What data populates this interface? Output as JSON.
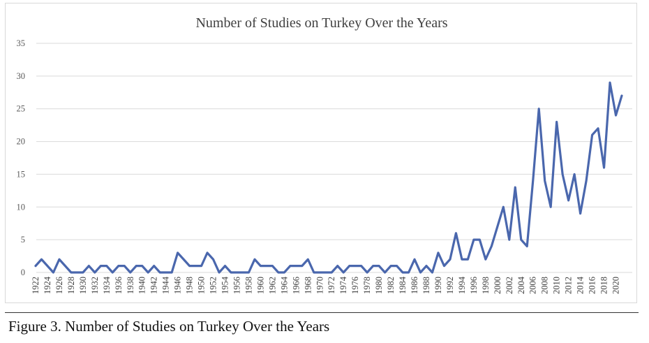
{
  "chart_data": {
    "type": "line",
    "title": "Number of Studies on Turkey Over the Years",
    "xlabel": "",
    "ylabel": "",
    "ylim": [
      0,
      35
    ],
    "yticks": [
      "0",
      "5",
      "10",
      "15",
      "20",
      "25",
      "30",
      "35"
    ],
    "grid": true,
    "legend": "none",
    "x": [
      1922,
      1923,
      1924,
      1925,
      1926,
      1927,
      1928,
      1929,
      1930,
      1931,
      1932,
      1933,
      1934,
      1935,
      1936,
      1937,
      1938,
      1939,
      1940,
      1941,
      1942,
      1943,
      1944,
      1945,
      1946,
      1947,
      1948,
      1949,
      1950,
      1951,
      1952,
      1953,
      1954,
      1955,
      1956,
      1957,
      1958,
      1959,
      1960,
      1961,
      1962,
      1963,
      1964,
      1965,
      1966,
      1967,
      1968,
      1969,
      1970,
      1971,
      1972,
      1973,
      1974,
      1975,
      1976,
      1977,
      1978,
      1979,
      1980,
      1981,
      1982,
      1983,
      1984,
      1985,
      1986,
      1987,
      1988,
      1989,
      1990,
      1991,
      1992,
      1993,
      1994,
      1995,
      1996,
      1997,
      1998,
      1999,
      2000,
      2001,
      2002,
      2003,
      2004,
      2005,
      2006,
      2007,
      2008,
      2009,
      2010,
      2011,
      2012,
      2013,
      2014,
      2015,
      2016,
      2017,
      2018,
      2019,
      2020,
      2021
    ],
    "xticks": [
      "1922",
      "1924",
      "1926",
      "1928",
      "1930",
      "1932",
      "1934",
      "1936",
      "1938",
      "1940",
      "1942",
      "1944",
      "1946",
      "1948",
      "1950",
      "1952",
      "1954",
      "1956",
      "1958",
      "1960",
      "1962",
      "1964",
      "1966",
      "1968",
      "1970",
      "1972",
      "1974",
      "1976",
      "1978",
      "1980",
      "1982",
      "1984",
      "1986",
      "1988",
      "1990",
      "1992",
      "1994",
      "1996",
      "1998",
      "2000",
      "2002",
      "2004",
      "2006",
      "2008",
      "2010",
      "2012",
      "2014",
      "2016",
      "2018",
      "2020"
    ],
    "series": [
      {
        "values": [
          1,
          2,
          1,
          0,
          2,
          1,
          0,
          0,
          0,
          1,
          0,
          1,
          1,
          0,
          1,
          1,
          0,
          1,
          1,
          0,
          1,
          0,
          0,
          0,
          3,
          2,
          1,
          1,
          1,
          3,
          2,
          0,
          1,
          0,
          0,
          0,
          0,
          2,
          1,
          1,
          1,
          0,
          0,
          1,
          1,
          1,
          2,
          0,
          0,
          0,
          0,
          1,
          0,
          1,
          1,
          1,
          0,
          1,
          1,
          0,
          1,
          1,
          0,
          0,
          2,
          0,
          1,
          0,
          3,
          1,
          2,
          6,
          2,
          2,
          5,
          5,
          2,
          4,
          7,
          10,
          5,
          13,
          5,
          4,
          14,
          25,
          14,
          10,
          23,
          15,
          11,
          15,
          9,
          14,
          21,
          22,
          16,
          29,
          24,
          27
        ],
        "color": "#4a67ad"
      }
    ]
  },
  "caption": "Figure 3. Number of Studies on Turkey Over the Years"
}
